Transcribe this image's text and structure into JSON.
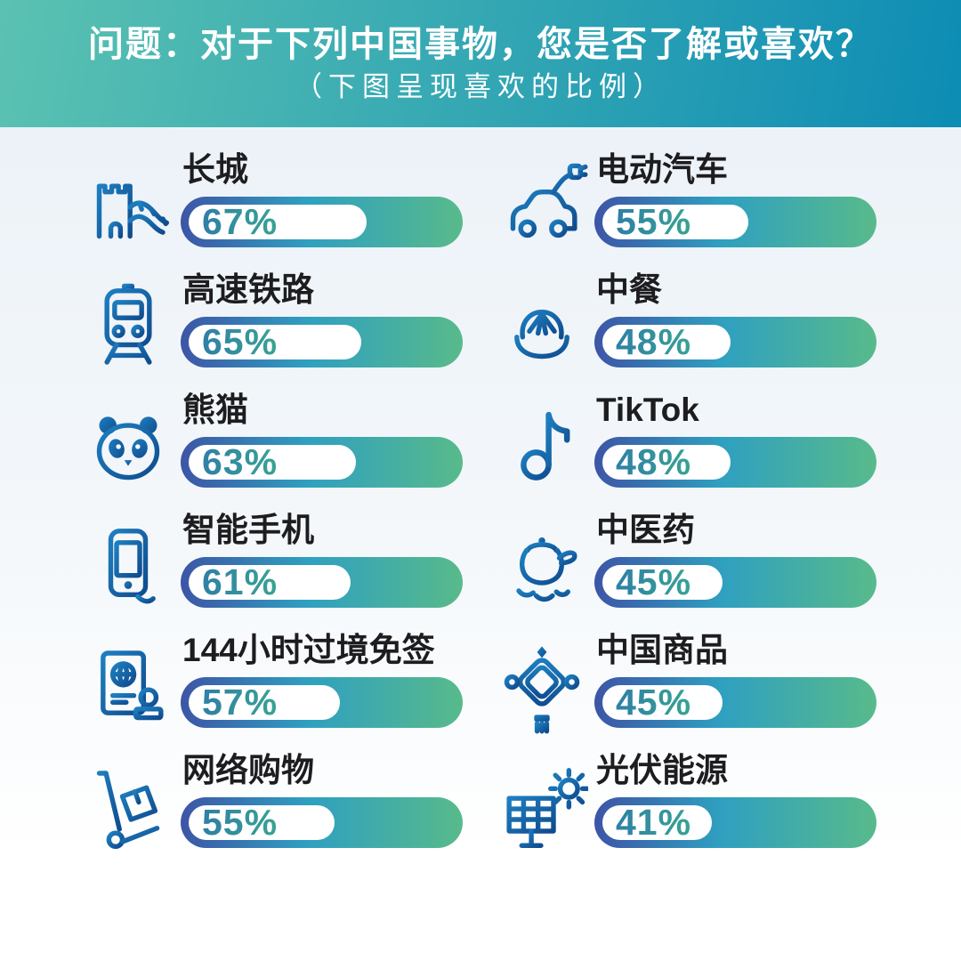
{
  "header": {
    "title": "问题：对于下列中国事物，您是否了解或喜欢？",
    "subtitle": "（下图呈现喜欢的比例）"
  },
  "chart_data": {
    "type": "bar",
    "orientation": "horizontal",
    "title": "问题：对于下列中国事物，您是否了解或喜欢？",
    "subtitle": "（下图呈现喜欢的比例）",
    "unit": "%",
    "xlim": [
      0,
      100
    ],
    "categories": [
      "长城",
      "高速铁路",
      "熊猫",
      "智能手机",
      "144小时过境免签",
      "网络购物",
      "电动汽车",
      "中餐",
      "TikTok",
      "中医药",
      "中国商品",
      "光伏能源"
    ],
    "values": [
      67,
      65,
      63,
      61,
      57,
      55,
      55,
      48,
      48,
      45,
      45,
      41
    ],
    "layout": "2-column grid, row-major display; ranked left column (67-55) then right column (55-41); value label shown inside white filled portion of each pill bar"
  },
  "items": [
    {
      "label": "长城",
      "value": "67%",
      "pct": 67,
      "icon": "great-wall-icon"
    },
    {
      "label": "电动汽车",
      "value": "55%",
      "pct": 55,
      "icon": "electric-car-icon"
    },
    {
      "label": "高速铁路",
      "value": "65%",
      "pct": 65,
      "icon": "high-speed-train-icon"
    },
    {
      "label": "中餐",
      "value": "48%",
      "pct": 48,
      "icon": "steamed-bun-icon"
    },
    {
      "label": "熊猫",
      "value": "63%",
      "pct": 63,
      "icon": "panda-icon"
    },
    {
      "label": "TikTok",
      "value": "48%",
      "pct": 48,
      "icon": "tiktok-icon"
    },
    {
      "label": "智能手机",
      "value": "61%",
      "pct": 61,
      "icon": "smartphone-icon"
    },
    {
      "label": "中医药",
      "value": "45%",
      "pct": 45,
      "icon": "medicine-pot-icon"
    },
    {
      "label": "144小时过境免签",
      "value": "57%",
      "pct": 57,
      "icon": "passport-stamp-icon"
    },
    {
      "label": "中国商品",
      "value": "45%",
      "pct": 45,
      "icon": "chinese-knot-icon"
    },
    {
      "label": "网络购物",
      "value": "55%",
      "pct": 55,
      "icon": "hand-truck-icon"
    },
    {
      "label": "光伏能源",
      "value": "41%",
      "pct": 41,
      "icon": "solar-panel-icon"
    }
  ],
  "colors": {
    "header_gradient_start": "#5BC2B2",
    "header_gradient_end": "#0D8CB4",
    "header_text": "#FFFFFF",
    "background_top": "#ECF2F8",
    "background_bottom": "#FFFFFF",
    "bar_gradient_start": "#3D55A6",
    "bar_gradient_mid": "#2FA0C0",
    "bar_gradient_end": "#58BA8B",
    "bar_fill_white": "#FFFFFF",
    "value_text_start": "#2F7FA6",
    "value_text_end": "#38A393",
    "label_text": "#1D1D1F",
    "icon_blue_start": "#1E7FC0",
    "icon_blue_end": "#0F4C8F"
  }
}
